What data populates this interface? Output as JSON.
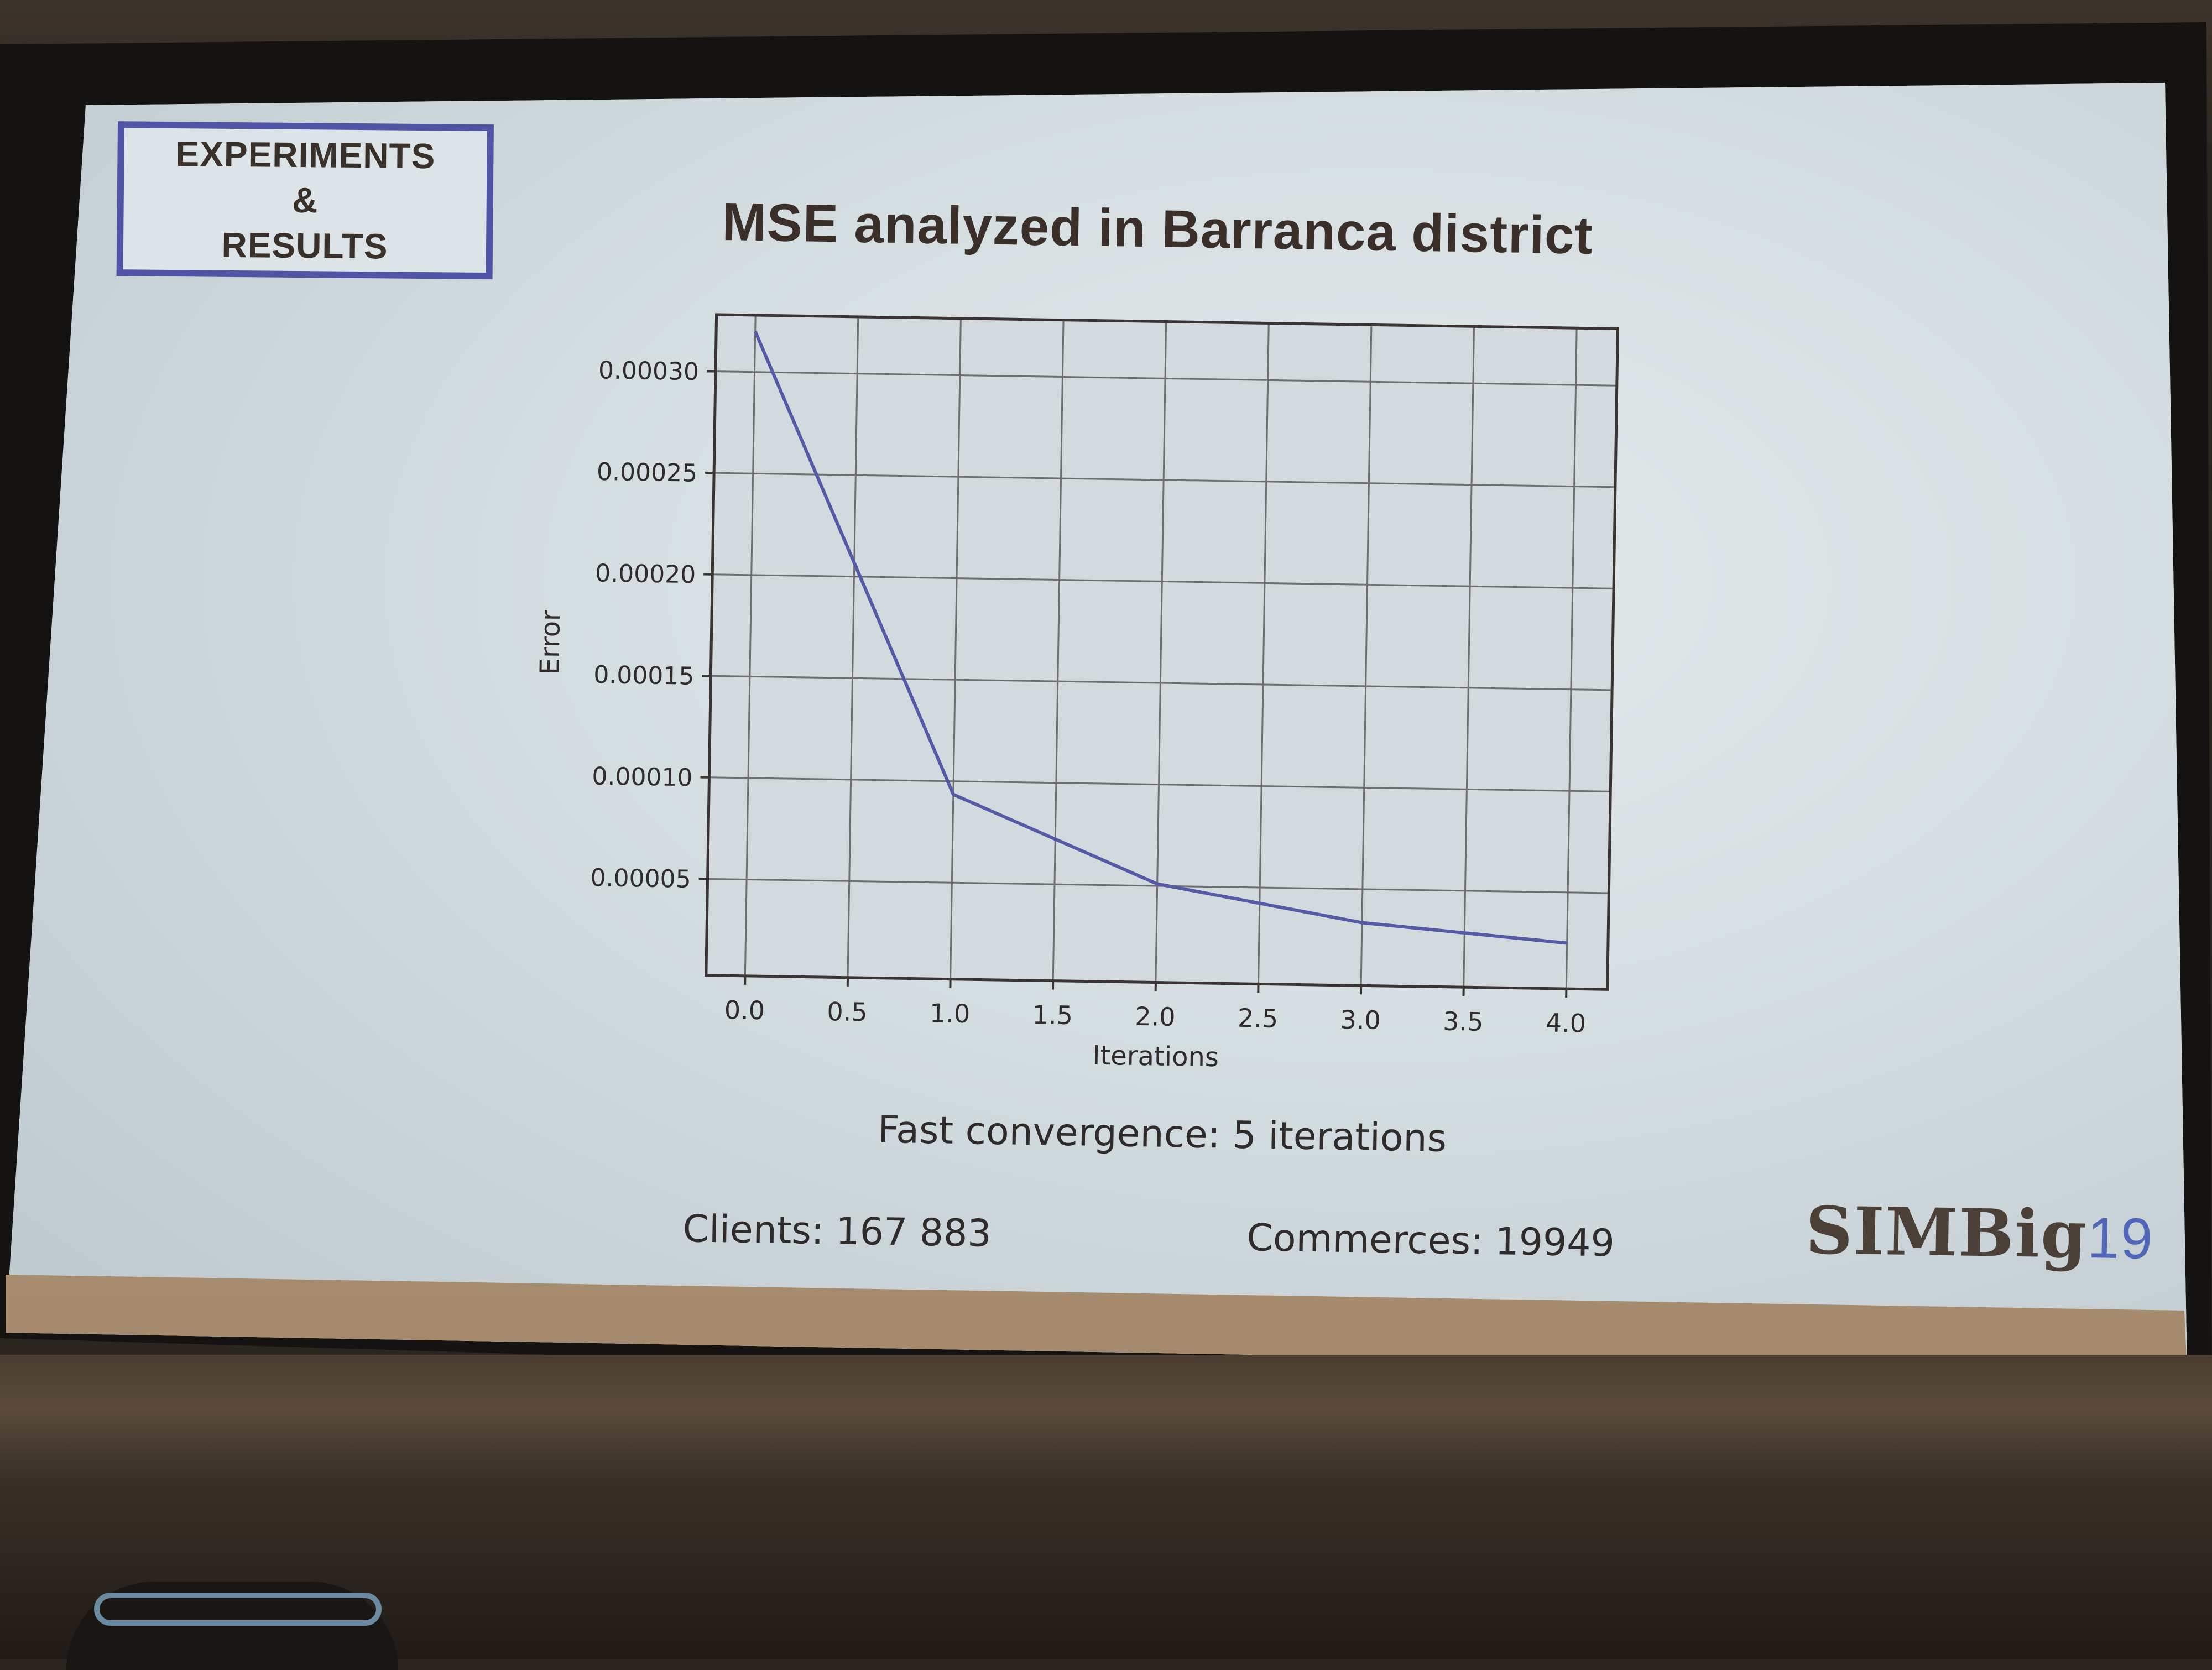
{
  "slide": {
    "section_box": [
      "EXPERIMENTS",
      "&",
      "RESULTS"
    ],
    "title": "MSE analyzed in Barranca district",
    "convergence": "Fast convergence:  5 iterations",
    "clients": "Clients: 167 883",
    "commerces": "Commerces: 19949",
    "logo_text": "SIMBig",
    "logo_number": "19"
  },
  "chart_data": {
    "type": "line",
    "title": "",
    "xlabel": "Iterations",
    "ylabel": "Error",
    "xlim": [
      -0.19,
      4.2
    ],
    "ylim": [
      2.5e-06,
      0.000328
    ],
    "x_ticks": [
      0.0,
      0.5,
      1.0,
      1.5,
      2.0,
      2.5,
      3.0,
      3.5,
      4.0
    ],
    "x_tick_labels": [
      "0.0",
      "0.5",
      "1.0",
      "1.5",
      "2.0",
      "2.5",
      "3.0",
      "3.5",
      "4.0"
    ],
    "y_ticks": [
      5e-05,
      0.0001,
      0.00015,
      0.0002,
      0.00025,
      0.0003
    ],
    "y_tick_labels": [
      "0.00005",
      "0.00010",
      "0.00015",
      "0.00020",
      "0.00025",
      "0.00030"
    ],
    "grid": true,
    "line_color": "#565aa6",
    "series": [
      {
        "x": [
          0,
          1,
          2,
          3,
          4
        ],
        "values": [
          0.00032,
          9.35e-05,
          5.1e-05,
          3.35e-05,
          2.5e-05
        ]
      }
    ]
  }
}
